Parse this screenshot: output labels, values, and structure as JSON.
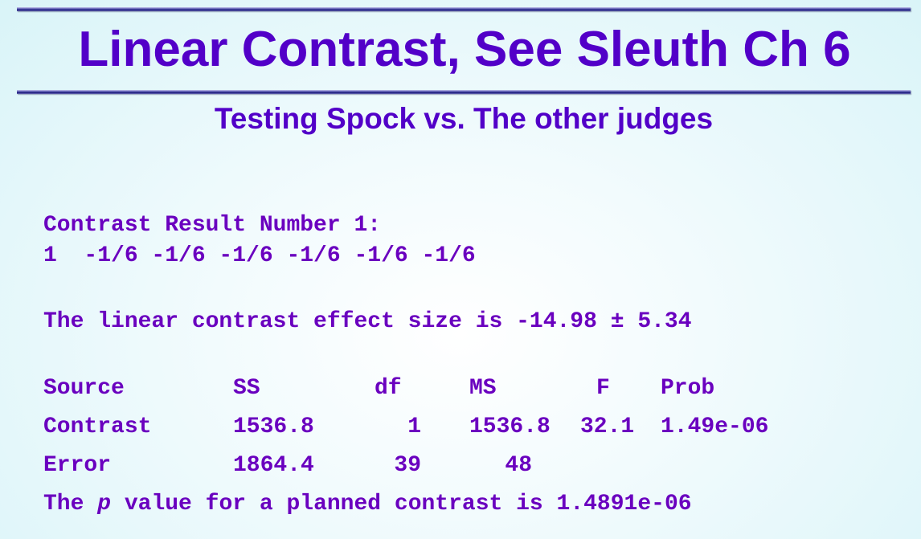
{
  "slide": {
    "title": "Linear Contrast, See Sleuth Ch 6",
    "subtitle": "Testing Spock vs. The other judges"
  },
  "output": {
    "contrast_header": "Contrast Result Number 1:",
    "coefficients": "1  -1/6 -1/6 -1/6 -1/6 -1/6 -1/6",
    "effect_size_line": "The linear contrast effect size is -14.98 ± 5.34",
    "table": {
      "headers": [
        "Source",
        "SS",
        "df",
        "MS",
        "F",
        "Prob"
      ],
      "rows": [
        [
          "Contrast",
          "1536.8",
          "1",
          "1536.8",
          "32.1",
          "1.49e-06"
        ],
        [
          "Error",
          "1864.4",
          "39",
          "48",
          "",
          ""
        ]
      ]
    },
    "p_line_prefix": "The ",
    "p_line_p": "p",
    "p_line_suffix": " value for a planned contrast is 1.4891e-06"
  },
  "colors": {
    "text": "#6a00bf",
    "title": "#5200c8",
    "background": "#d9f4f8",
    "rule": "#1e1e78"
  }
}
